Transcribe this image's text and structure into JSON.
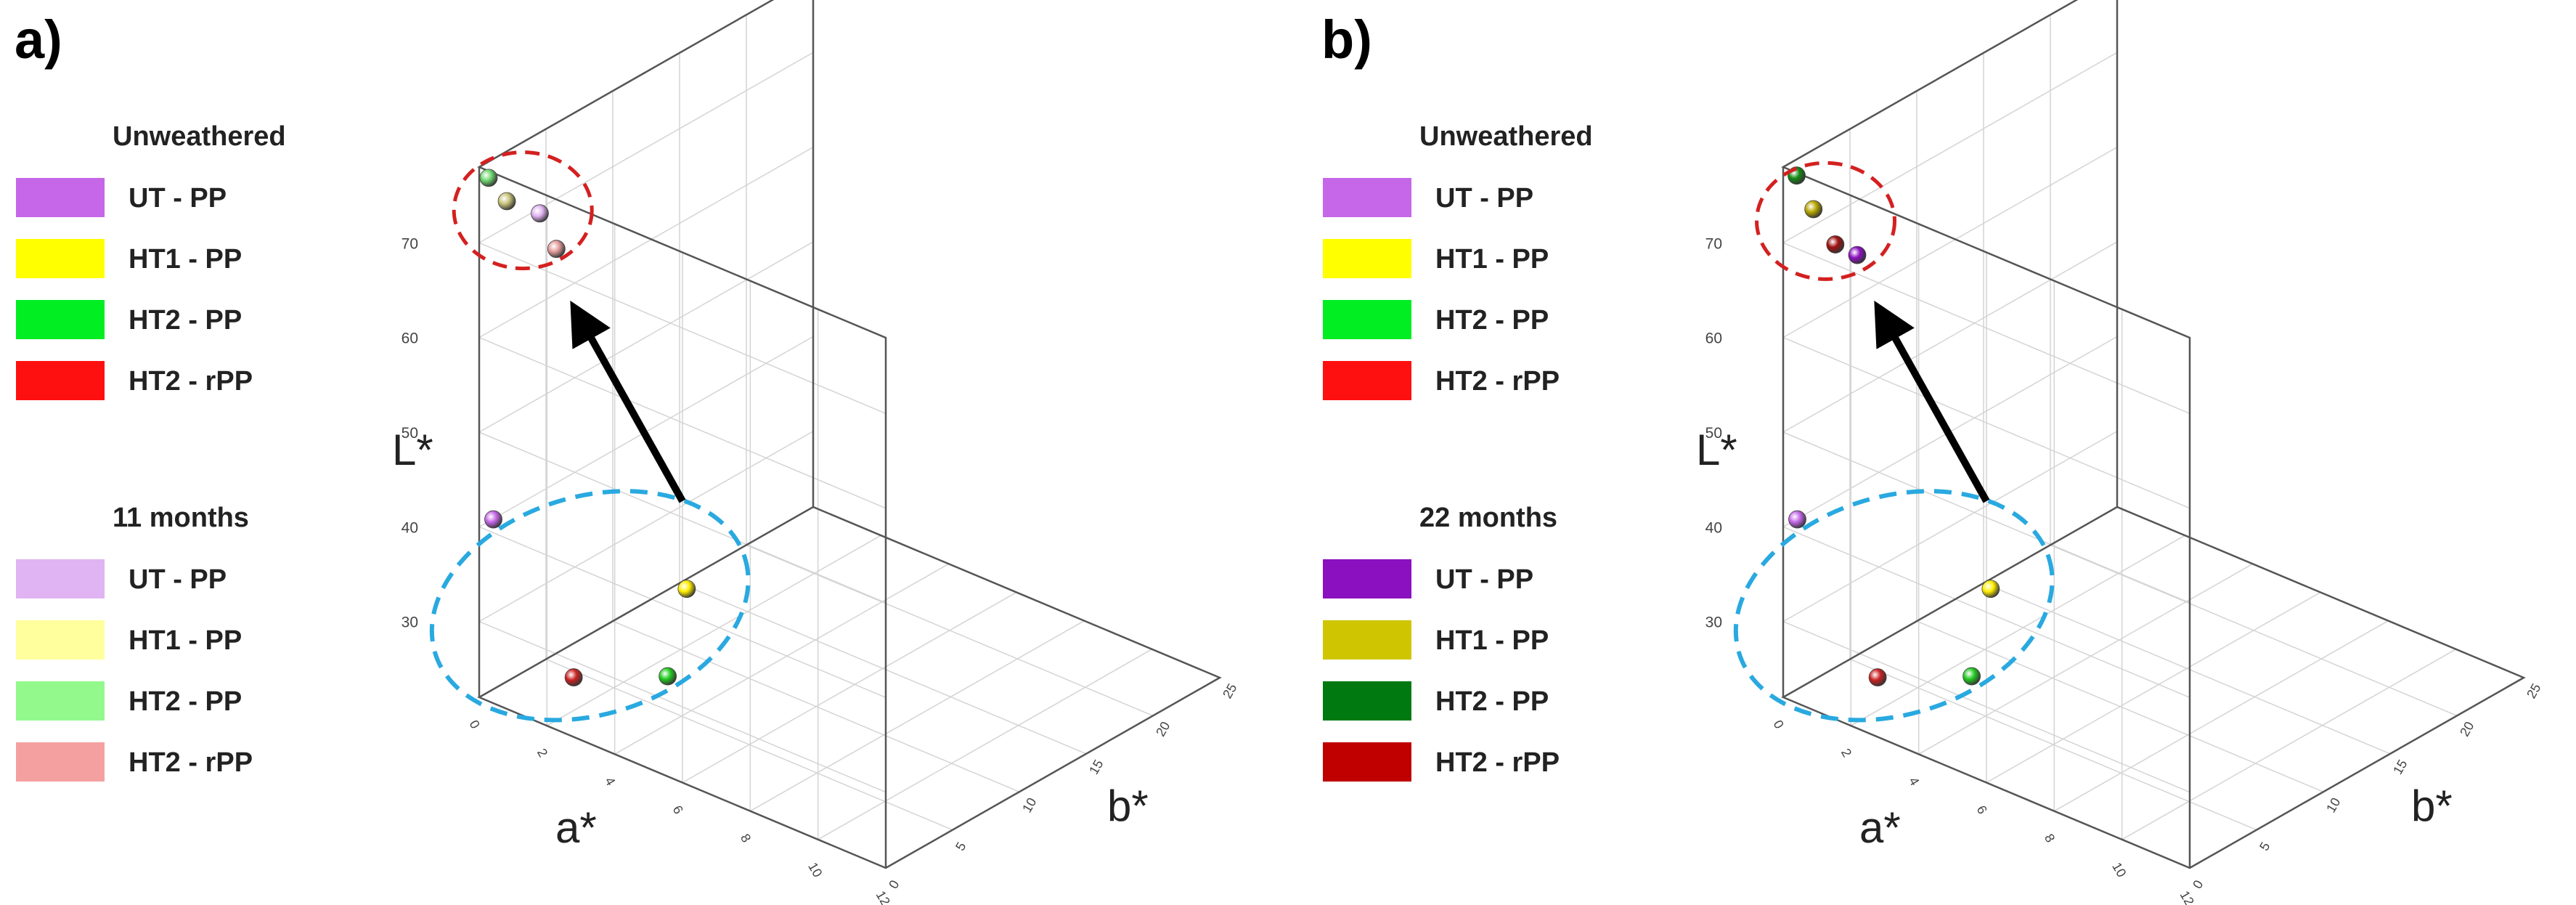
{
  "chart_data": [
    {
      "type": "scatter3d",
      "panel_label": "a)",
      "xlabel": "a*",
      "ylabel": "b*",
      "zlabel": "L*",
      "xlim": [
        0,
        12
      ],
      "ylim": [
        0,
        25
      ],
      "zlim": [
        22,
        78
      ],
      "x_ticks": [
        "0",
        "2",
        "4",
        "6",
        "8",
        "10",
        "12"
      ],
      "y_ticks": [
        "0",
        "5",
        "10",
        "15",
        "20",
        "25"
      ],
      "z_ticks": [
        "30",
        "40",
        "50",
        "60",
        "70"
      ],
      "legend_groups": [
        {
          "title": "Unweathered",
          "items": [
            {
              "label": "UT - PP",
              "color": "#c567e8"
            },
            {
              "label": "HT1 - PP",
              "color": "#ffff00"
            },
            {
              "label": "HT2 - PP",
              "color": "#00ee22"
            },
            {
              "label": "HT2 - rPP",
              "color": "#ff1010"
            }
          ]
        },
        {
          "title": "11 months",
          "items": [
            {
              "label": "UT - PP",
              "color": "#e0b3f2"
            },
            {
              "label": "HT1 - PP",
              "color": "#ffff9e"
            },
            {
              "label": "HT2 - PP",
              "color": "#93f98d"
            },
            {
              "label": "HT2 - rPP",
              "color": "#f5a0a0"
            }
          ]
        }
      ],
      "series": [
        {
          "name": "Unweathered",
          "points": [
            {
              "label": "UT - PP",
              "a": 0.3,
              "b": 0.3,
              "L": 41.0,
              "color": "#c567e8"
            },
            {
              "label": "HT1 - PP",
              "a": 1.0,
              "b": 13.0,
              "L": 24.5,
              "color": "#ffee00"
            },
            {
              "label": "HT2 - PP",
              "a": 3.0,
              "b": 6.5,
              "L": 23.5,
              "color": "#22cc22"
            },
            {
              "label": "HT2 - rPP",
              "a": 2.0,
              "b": 2.0,
              "L": 25.5,
              "color": "#cc2222"
            }
          ]
        },
        {
          "name": "11 months",
          "points": [
            {
              "label": "UT - PP",
              "a": 1.0,
              "b": 2.0,
              "L": 73.0,
              "color": "#e0b3f2"
            },
            {
              "label": "HT1 - PP",
              "a": 0.5,
              "b": 0.8,
              "L": 74.5,
              "color": "#c8c27a"
            },
            {
              "label": "HT2 - PP",
              "a": 0.2,
              "b": 0.2,
              "L": 77.0,
              "color": "#6fd86f"
            },
            {
              "label": "HT2 - rPP",
              "a": 2.2,
              "b": 0.2,
              "L": 72.5,
              "color": "#e49c9c"
            }
          ]
        }
      ],
      "annotations": [
        "red dashed ellipse around weathered cluster",
        "blue dashed ellipse around unweathered cluster",
        "black arrow from blue ellipse to red ellipse"
      ]
    },
    {
      "type": "scatter3d",
      "panel_label": "b)",
      "xlabel": "a*",
      "ylabel": "b*",
      "zlabel": "L*",
      "xlim": [
        0,
        12
      ],
      "ylim": [
        0,
        25
      ],
      "zlim": [
        22,
        78
      ],
      "x_ticks": [
        "0",
        "2",
        "4",
        "6",
        "8",
        "10",
        "12"
      ],
      "y_ticks": [
        "0",
        "5",
        "10",
        "15",
        "20",
        "25"
      ],
      "z_ticks": [
        "30",
        "40",
        "50",
        "60",
        "70"
      ],
      "legend_groups": [
        {
          "title": "Unweathered",
          "items": [
            {
              "label": "UT - PP",
              "color": "#c567e8"
            },
            {
              "label": "HT1 - PP",
              "color": "#ffff00"
            },
            {
              "label": "HT2 - PP",
              "color": "#00ee22"
            },
            {
              "label": "HT2 - rPP",
              "color": "#ff1010"
            }
          ]
        },
        {
          "title": "22 months",
          "items": [
            {
              "label": "UT - PP",
              "color": "#8b10c0"
            },
            {
              "label": "HT1 - PP",
              "color": "#cfc500"
            },
            {
              "label": "HT2 - PP",
              "color": "#007a10"
            },
            {
              "label": "HT2 - rPP",
              "color": "#c00000"
            }
          ]
        }
      ],
      "series": [
        {
          "name": "Unweathered",
          "points": [
            {
              "label": "UT - PP",
              "a": 0.3,
              "b": 0.3,
              "L": 41.0,
              "color": "#c567e8"
            },
            {
              "label": "HT1 - PP",
              "a": 1.0,
              "b": 13.0,
              "L": 24.5,
              "color": "#ffee00"
            },
            {
              "label": "HT2 - PP",
              "a": 3.0,
              "b": 6.5,
              "L": 23.5,
              "color": "#22cc22"
            },
            {
              "label": "HT2 - rPP",
              "a": 2.0,
              "b": 2.0,
              "L": 25.5,
              "color": "#cc2222"
            }
          ]
        },
        {
          "name": "22 months",
          "points": [
            {
              "label": "UT - PP",
              "a": 1.2,
              "b": 2.5,
              "L": 68.5,
              "color": "#8b10c0"
            },
            {
              "label": "HT1 - PP",
              "a": 0.5,
              "b": 1.0,
              "L": 73.5,
              "color": "#b8a800"
            },
            {
              "label": "HT2 - PP",
              "a": 0.2,
              "b": 0.5,
              "L": 77.0,
              "color": "#138a13"
            },
            {
              "label": "HT2 - rPP",
              "a": 1.5,
              "b": 0.1,
              "L": 72.0,
              "color": "#a01010"
            }
          ]
        }
      ],
      "annotations": [
        "red dashed ellipse around weathered cluster",
        "blue dashed ellipse around unweathered cluster",
        "black arrow from blue ellipse to red ellipse"
      ]
    }
  ]
}
